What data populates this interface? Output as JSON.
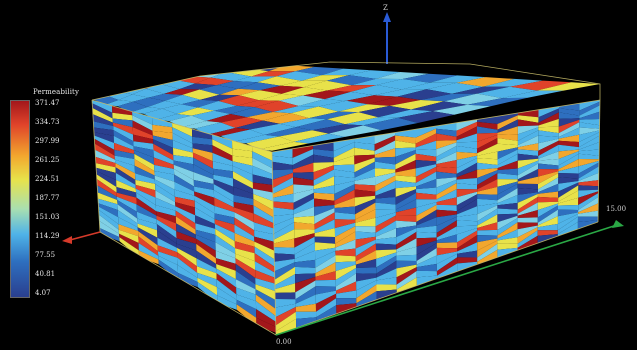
{
  "legend": {
    "title": "Permeability",
    "ticks": [
      "371.47",
      "334.73",
      "297.99",
      "261.25",
      "224.51",
      "187.77",
      "151.03",
      "114.29",
      "77.55",
      "40.81",
      "4.07"
    ]
  },
  "axes": {
    "x_end_label": "15.00",
    "y_end_label": "0.00",
    "x_axis_color": "#2aa845",
    "y_axis_color": "#d63a2a",
    "z_axis_color": "#2a5bd6"
  },
  "colors": {
    "background": "#000000",
    "box_edge": "#c8bd6a",
    "palette": [
      "#2a3f8f",
      "#2e6fbf",
      "#4fb3e8",
      "#7fd0e6",
      "#e8e24a",
      "#f2a72e",
      "#e0432a",
      "#a3171b"
    ]
  }
}
